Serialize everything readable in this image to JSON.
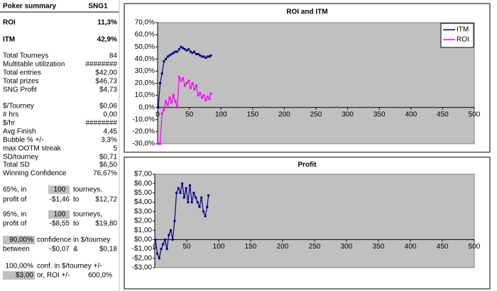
{
  "summary": {
    "title": "Poker summary",
    "column": "SNG1",
    "rows": [
      [
        "ROI",
        "11,3%"
      ],
      [
        "ITM",
        "42,9%"
      ],
      [
        "Total Tourneys",
        "84"
      ],
      [
        "Multitable utilization",
        "########"
      ],
      [
        "Total entries",
        "$42,00"
      ],
      [
        "Total prizes",
        "$46,73"
      ],
      [
        "SNG Profit",
        "$4,73"
      ],
      [
        "$/Tourney",
        "$0,06"
      ],
      [
        "# hrs",
        "0,00"
      ],
      [
        "$/hr",
        "########"
      ],
      [
        "Avg Finish",
        "4,45"
      ],
      [
        "Bubble % +/-",
        "3,3%"
      ],
      [
        "max OOTM streak",
        "5"
      ],
      [
        "SD/tourney",
        "$0,71"
      ],
      [
        "Total SD",
        "$6,50"
      ],
      [
        "Winning Confidence",
        "76,67%"
      ]
    ]
  },
  "confidence": {
    "rows": [
      [
        "65%, in",
        "100",
        "tourneys,"
      ],
      [
        "profit of",
        "-$1,46",
        "to",
        "$12,72"
      ],
      [
        "95%, in",
        "100",
        "tourneys,"
      ],
      [
        "profit of",
        "-$8,55",
        "to",
        "$19,80"
      ],
      [
        "90,00%",
        "confidence in $/tourney"
      ],
      [
        "between",
        "-$0,07",
        "&",
        "$0,18"
      ],
      [
        "100,00%",
        "conf. in $/tourney +/-"
      ],
      [
        "$3,00",
        "or, ROI +/-",
        "600,0%"
      ]
    ]
  },
  "chart_data": [
    {
      "type": "line",
      "title": "ROI and ITM",
      "x": [
        1,
        4,
        7,
        10,
        13,
        16,
        19,
        22,
        25,
        28,
        31,
        34,
        37,
        40,
        43,
        46,
        49,
        52,
        55,
        58,
        61,
        64,
        67,
        70,
        73,
        76,
        79,
        82,
        84
      ],
      "series": [
        {
          "name": "ITM",
          "color": "#000080",
          "values": [
            0,
            20,
            28,
            38,
            40,
            42,
            43,
            44,
            45,
            46,
            46,
            48,
            50,
            49,
            48,
            47,
            48,
            46,
            45,
            46,
            44,
            44,
            43,
            42,
            42,
            41,
            42,
            42,
            42.9
          ]
        },
        {
          "name": "ROI",
          "color": "#ff00ff",
          "values": [
            -30,
            -30,
            -5,
            -2,
            5,
            2,
            8,
            4,
            10,
            5,
            0,
            25,
            22,
            24,
            18,
            20,
            22,
            16,
            20,
            15,
            18,
            10,
            12,
            8,
            10,
            6,
            9,
            7,
            11.3
          ]
        }
      ],
      "xlim": [
        0,
        500
      ],
      "xticks": [
        0,
        50,
        100,
        150,
        200,
        250,
        300,
        350,
        400,
        450,
        500
      ],
      "ylim": [
        -30,
        70
      ],
      "yticks": [
        {
          "value": -30,
          "label": "-30,0%"
        },
        {
          "value": -20,
          "label": "-20,0%"
        },
        {
          "value": -10,
          "label": "-10,0%"
        },
        {
          "value": 0,
          "label": "0,0%"
        },
        {
          "value": 10,
          "label": "10,0%"
        },
        {
          "value": 20,
          "label": "20,0%"
        },
        {
          "value": 30,
          "label": "30,0%"
        },
        {
          "value": 40,
          "label": "40,0%"
        },
        {
          "value": 50,
          "label": "50,0%"
        },
        {
          "value": 60,
          "label": "60,0%"
        },
        {
          "value": 70,
          "label": "70,0%"
        }
      ],
      "legend": "upper right",
      "grid": false
    },
    {
      "type": "line",
      "title": "Profit",
      "x": [
        1,
        4,
        7,
        10,
        13,
        16,
        19,
        22,
        25,
        28,
        31,
        34,
        37,
        40,
        43,
        46,
        49,
        52,
        55,
        58,
        61,
        64,
        67,
        70,
        73,
        76,
        79,
        82,
        84
      ],
      "values": [
        0,
        -1.5,
        -2,
        -1,
        -0.5,
        0,
        -1,
        0.5,
        1,
        0,
        2,
        5,
        5.5,
        5,
        6,
        4.5,
        5.5,
        4,
        5.8,
        4,
        5,
        4.5,
        4,
        3.5,
        4.5,
        3,
        2.5,
        3.5,
        4.73
      ],
      "color": "#000080",
      "xlim": [
        0,
        500
      ],
      "xticks": [
        0,
        50,
        100,
        150,
        200,
        250,
        300,
        350,
        400,
        450,
        500
      ],
      "ylim": [
        -3,
        7
      ],
      "yticks": [
        {
          "value": -3,
          "label": "-$3,00"
        },
        {
          "value": -2,
          "label": "-$2,00"
        },
        {
          "value": -1,
          "label": "-$1,00"
        },
        {
          "value": 0,
          "label": "$0,00"
        },
        {
          "value": 1,
          "label": "$1,00"
        },
        {
          "value": 2,
          "label": "$2,00"
        },
        {
          "value": 3,
          "label": "$3,00"
        },
        {
          "value": 4,
          "label": "$4,00"
        },
        {
          "value": 5,
          "label": "$5,00"
        },
        {
          "value": 6,
          "label": "$6,00"
        },
        {
          "value": 7,
          "label": "$7,00"
        }
      ],
      "grid": false
    }
  ]
}
